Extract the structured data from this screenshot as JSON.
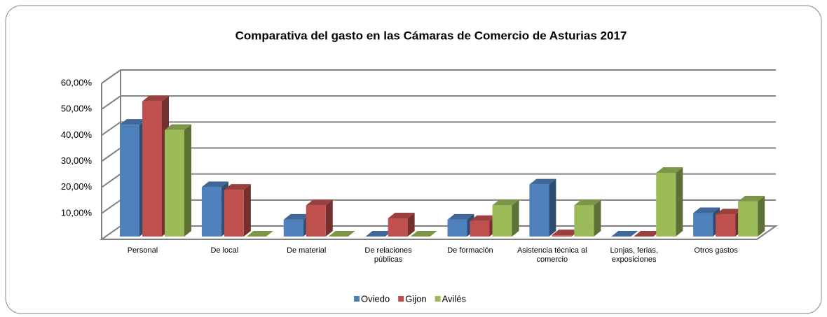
{
  "chart_data": {
    "type": "bar3d",
    "title": "Comparativa  del  gasto en las Cámaras de Comercio de Asturias 2017",
    "categories": [
      "Personal",
      "De  local",
      "De material",
      "De relaciones públicas",
      "De formación",
      "Asistencia técnica al comercio",
      "Lonjas, ferias, exposiciones",
      "Otros gastos"
    ],
    "series": [
      {
        "name": "Oviedo",
        "color": "#4f81bd",
        "values": [
          43,
          19,
          6.5,
          0,
          6.5,
          20,
          0,
          9
        ]
      },
      {
        "name": "Gijon",
        "color": "#c0504d",
        "values": [
          52,
          18,
          12,
          7,
          6,
          0.5,
          0,
          8.5
        ]
      },
      {
        "name": "Avilés",
        "color": "#9bbb59",
        "values": [
          41,
          0,
          0,
          0,
          12,
          12,
          24.5,
          13.5
        ]
      }
    ],
    "ylim": [
      0,
      60
    ],
    "yticks": [
      {
        "value": 10,
        "label": "10,00%"
      },
      {
        "value": 20,
        "label": "20,00%"
      },
      {
        "value": 30,
        "label": "30,00%"
      },
      {
        "value": 40,
        "label": "40,00%"
      },
      {
        "value": 50,
        "label": "50,00%"
      },
      {
        "value": 60,
        "label": "60,00%"
      }
    ],
    "grid": true,
    "legend": "bottom"
  }
}
